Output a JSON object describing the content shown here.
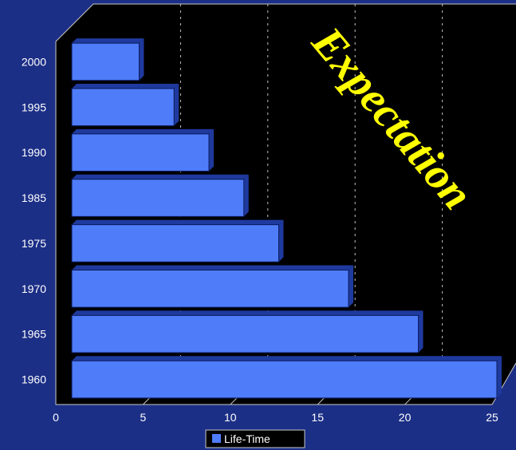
{
  "chart_data": {
    "type": "bar",
    "orientation": "horizontal",
    "categories": [
      "1960",
      "1965",
      "1970",
      "1975",
      "1985",
      "1990",
      "1995",
      "2000"
    ],
    "series": [
      {
        "name": "Life-Time",
        "values": [
          25,
          20.5,
          16.5,
          12.5,
          10.5,
          8.5,
          6.5,
          4.5
        ],
        "color": "#4f7df9"
      }
    ],
    "xlim": [
      0,
      25
    ],
    "xticks": [
      "0",
      "5",
      "10",
      "15",
      "20",
      "25"
    ],
    "grid": true,
    "legend": "bottom",
    "annotation": "Expectation",
    "colors": {
      "background": "#1c2f86",
      "plot": "#000000",
      "bar": "#4f7df9",
      "bar_dark": "#1f3a9e",
      "annotation": "#ffff00"
    }
  }
}
